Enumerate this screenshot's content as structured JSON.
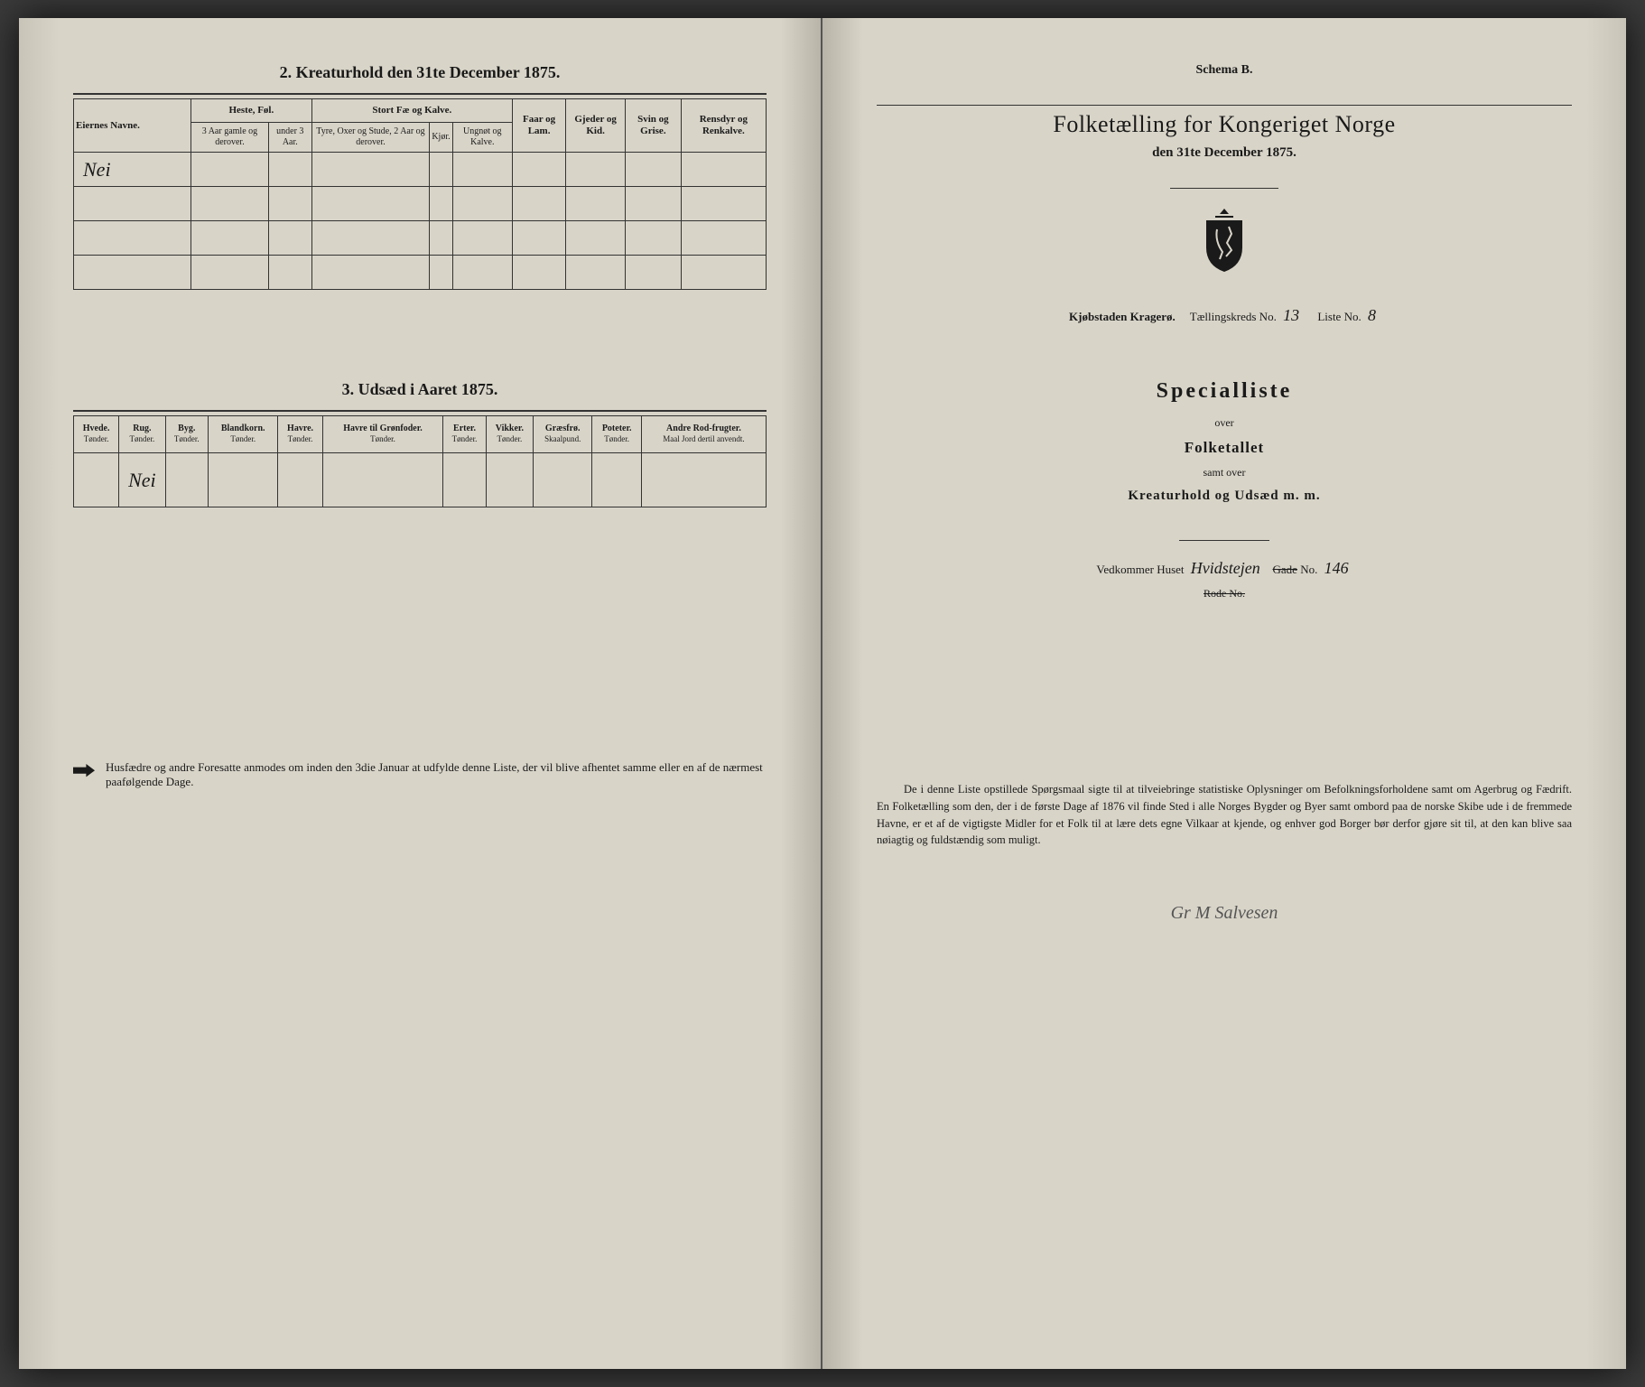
{
  "left": {
    "section2_title": "2. Kreaturhold den 31te December 1875.",
    "section3_title": "3. Udsæd i Aaret 1875.",
    "table2": {
      "col_eier": "Eiernes Navne.",
      "grp_heste": "Heste, Føl.",
      "grp_storfe": "Stort Fæ og Kalve.",
      "grp_faar": "Faar og Lam.",
      "grp_gjeder": "Gjeder og Kid.",
      "grp_svin": "Svin og Grise.",
      "grp_rensdyr": "Rensdyr og Renkalve.",
      "sub_heste1": "3 Aar gamle og derover.",
      "sub_heste2": "under 3 Aar.",
      "sub_stor1": "Tyre, Oxer og Stude, 2 Aar og derover.",
      "sub_stor2": "Kjør.",
      "sub_stor3": "Ungnøt og Kalve.",
      "row1_value": "Nei"
    },
    "table3": {
      "cols": [
        {
          "h": "Hvede.",
          "s": "Tønder."
        },
        {
          "h": "Rug.",
          "s": "Tønder."
        },
        {
          "h": "Byg.",
          "s": "Tønder."
        },
        {
          "h": "Blandkorn.",
          "s": "Tønder."
        },
        {
          "h": "Havre.",
          "s": "Tønder."
        },
        {
          "h": "Havre til Grønfoder.",
          "s": "Tønder."
        },
        {
          "h": "Erter.",
          "s": "Tønder."
        },
        {
          "h": "Vikker.",
          "s": "Tønder."
        },
        {
          "h": "Græsfrø.",
          "s": "Skaalpund."
        },
        {
          "h": "Poteter.",
          "s": "Tønder."
        },
        {
          "h": "Andre Rod-frugter.",
          "s": "Maal Jord dertil anvendt."
        }
      ],
      "row1_value": "Nei"
    },
    "footnote": "Husfædre og andre Foresatte anmodes om inden den 3die Januar at udfylde denne Liste, der vil blive afhentet samme eller en af de nærmest paafølgende Dage."
  },
  "right": {
    "schema": "Schema B.",
    "main_title": "Folketælling for Kongeriget Norge",
    "date_line": "den 31te December 1875.",
    "district_prefix": "Kjøbstaden Kragerø.",
    "district_kreds_label": "Tællingskreds No.",
    "district_kreds_value": "13",
    "district_liste_label": "Liste No.",
    "district_liste_value": "8",
    "special_title": "Specialliste",
    "over": "over",
    "folketallet": "Folketallet",
    "samt_over": "samt over",
    "kreatur_line": "Kreaturhold og Udsæd m. m.",
    "vedkommer_label": "Vedkommer Huset",
    "vedkommer_value": "Hvidstejen",
    "gade_label": "Gade",
    "gade_no_label": "No.",
    "gade_no_value": "146",
    "rode_label": "Rode No.",
    "bottom_para": "De i denne Liste opstillede Spørgsmaal sigte til at tilveiebringe statistiske Oplysninger om Befolkningsforholdene samt om Agerbrug og Fædrift. En Folketælling som den, der i de første Dage af 1876 vil finde Sted i alle Norges Bygder og Byer samt ombord paa de norske Skibe ude i de fremmede Havne, er et af de vigtigste Midler for et Folk til at lære dets egne Vilkaar at kjende, og enhver god Borger bør derfor gjøre sit til, at den kan blive saa nøiagtig og fuldstændig som muligt.",
    "signature": "Gr M Salvesen"
  },
  "colors": {
    "paper": "#d8d4c8",
    "ink": "#1a1a1a",
    "bg": "#3a3a3a"
  }
}
